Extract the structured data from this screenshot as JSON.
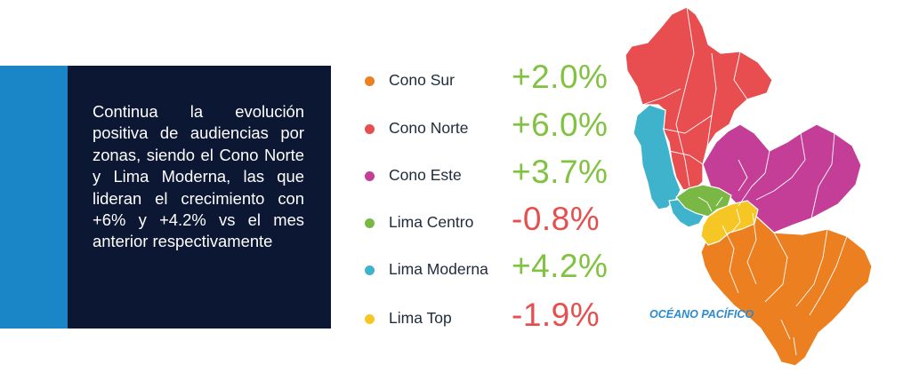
{
  "intro_text": "Continua la evolución positiva de audiencias por zonas, siendo el Cono Norte y Lima Moderna, las que lideran el crecimiento con +6% y +4.2% vs el mes anterior respectivamente",
  "zones": [
    {
      "label": "Cono Sur",
      "value": "+2.0%",
      "dot_color": "#ec7f1f",
      "value_color": "#82c241"
    },
    {
      "label": "Cono Norte",
      "value": "+6.0%",
      "dot_color": "#e84e4f",
      "value_color": "#82c241"
    },
    {
      "label": "Cono Este",
      "value": "+3.7%",
      "dot_color": "#c43e97",
      "value_color": "#82c241"
    },
    {
      "label": "Lima Centro",
      "value": "-0.8%",
      "dot_color": "#79b844",
      "value_color": "#e5504e"
    },
    {
      "label": "Lima Moderna",
      "value": "+4.2%",
      "dot_color": "#3fb3cc",
      "value_color": "#82c241"
    },
    {
      "label": "Lima Top",
      "value": "-1.9%",
      "dot_color": "#f6c625",
      "value_color": "#e5504e"
    }
  ],
  "map": {
    "ocean_label": "OCÉANO PACÍFICO"
  },
  "colors": {
    "accent": "#1a86c8",
    "panel": "#0c1733",
    "ocean_text": "#2b8ad0"
  }
}
